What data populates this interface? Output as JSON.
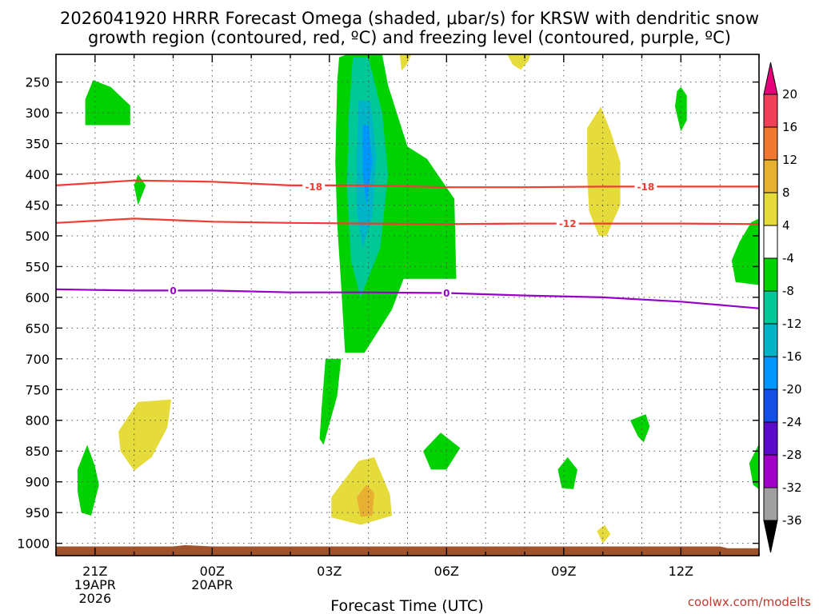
{
  "title_line1": "2026041920 HRRR Forecast Omega (shaded, μbar/s) for KRSW with dendritic snow",
  "title_line2": "growth region (contoured, red, ºC) and freezing level (contoured, purple, ºC)",
  "credit": "coolwx.com/modelts",
  "chart_data": {
    "type": "time-height cross section",
    "xlabel": "Forecast Time (UTC)",
    "x_ticks": [
      {
        "label": "21Z",
        "sub": [
          "19APR",
          "2026"
        ],
        "hour": 1
      },
      {
        "label": "00Z",
        "sub": [
          "20APR"
        ],
        "hour": 4
      },
      {
        "label": "03Z",
        "sub": [],
        "hour": 7
      },
      {
        "label": "06Z",
        "sub": [],
        "hour": 10
      },
      {
        "label": "09Z",
        "sub": [],
        "hour": 13
      },
      {
        "label": "12Z",
        "sub": [],
        "hour": 16
      }
    ],
    "x_range": [
      0,
      18
    ],
    "y_unit": "mb",
    "y_range": [
      1020,
      205
    ],
    "y_ticks": [
      250,
      300,
      350,
      400,
      450,
      500,
      550,
      600,
      650,
      700,
      750,
      800,
      850,
      900,
      950,
      1000
    ],
    "colorbar": {
      "labels": [
        20,
        16,
        12,
        8,
        4,
        -4,
        -8,
        -12,
        -16,
        -20,
        -24,
        -28,
        -32,
        -36
      ],
      "colors": [
        "#f0405a",
        "#f07830",
        "#e8b030",
        "#e5dc3c",
        "#ffffff",
        "#00d200",
        "#00c896",
        "#00b4c8",
        "#0096ff",
        "#1450e6",
        "#5a0ac8",
        "#a000c8",
        "#a0a0a0"
      ],
      "over_color": "#e6007a",
      "under_color": "#000000"
    },
    "contours": [
      {
        "name": "dendritic -18",
        "label": "-18",
        "color": "#f03c32",
        "points": [
          [
            0,
            418
          ],
          [
            2,
            410
          ],
          [
            4,
            412
          ],
          [
            6,
            418
          ],
          [
            8,
            418
          ],
          [
            10,
            421
          ],
          [
            12,
            421
          ],
          [
            14,
            420
          ],
          [
            16,
            420
          ],
          [
            18,
            420
          ]
        ]
      },
      {
        "name": "dendritic -12",
        "label": "-12",
        "color": "#f03c32",
        "points": [
          [
            0,
            479
          ],
          [
            2,
            472
          ],
          [
            4,
            477
          ],
          [
            6,
            479
          ],
          [
            8,
            480
          ],
          [
            10,
            481
          ],
          [
            12,
            480
          ],
          [
            14,
            480
          ],
          [
            16,
            480
          ],
          [
            18,
            481
          ]
        ]
      },
      {
        "name": "freezing level 0",
        "label": "0",
        "color": "#9600c8",
        "points": [
          [
            0,
            587
          ],
          [
            2,
            589
          ],
          [
            4,
            589
          ],
          [
            6,
            592
          ],
          [
            8,
            592
          ],
          [
            10,
            593
          ],
          [
            12,
            597
          ],
          [
            14,
            600
          ],
          [
            16,
            607
          ],
          [
            18,
            618
          ]
        ]
      }
    ],
    "contour_labels": [
      {
        "text": "-18",
        "hour": 6.6,
        "level": 420,
        "color": "#f03c32"
      },
      {
        "text": "-18",
        "hour": 15.1,
        "level": 420,
        "color": "#f03c32"
      },
      {
        "text": "-12",
        "hour": 13.1,
        "level": 480,
        "color": "#f03c32"
      },
      {
        "text": "0",
        "hour": 3.0,
        "level": 589,
        "color": "#9600c8"
      },
      {
        "text": "0",
        "hour": 10.0,
        "level": 593,
        "color": "#9600c8"
      }
    ],
    "shaded_regions": [
      {
        "name": "omega -4 to -8",
        "color": "#00d200",
        "points": [
          [
            0.75,
            320
          ],
          [
            1.9,
            320
          ],
          [
            1.9,
            288
          ],
          [
            1.4,
            258
          ],
          [
            0.95,
            247
          ],
          [
            0.75,
            278
          ]
        ]
      },
      {
        "name": "omega -4 to -8",
        "color": "#00d200",
        "points": [
          [
            2.0,
            418
          ],
          [
            2.1,
            400
          ],
          [
            2.3,
            418
          ],
          [
            2.1,
            450
          ]
        ]
      },
      {
        "name": "omega -4 to -8",
        "color": "#00d200",
        "points": [
          [
            7.25,
            210
          ],
          [
            7.45,
            205
          ],
          [
            8.35,
            205
          ],
          [
            8.5,
            255
          ],
          [
            9.0,
            355
          ],
          [
            9.5,
            375
          ],
          [
            10.2,
            440
          ],
          [
            10.25,
            570
          ],
          [
            8.9,
            570
          ],
          [
            8.6,
            620
          ],
          [
            7.9,
            690
          ],
          [
            7.4,
            690
          ],
          [
            7.3,
            580
          ],
          [
            7.2,
            480
          ],
          [
            7.15,
            380
          ],
          [
            7.2,
            250
          ]
        ]
      },
      {
        "name": "omega -8 to -12",
        "color": "#00c896",
        "points": [
          [
            7.6,
            210
          ],
          [
            8.0,
            210
          ],
          [
            8.35,
            300
          ],
          [
            8.5,
            400
          ],
          [
            8.3,
            520
          ],
          [
            7.8,
            600
          ],
          [
            7.55,
            540
          ],
          [
            7.45,
            420
          ],
          [
            7.5,
            300
          ]
        ]
      },
      {
        "name": "omega -12 to -16",
        "color": "#00b4c8",
        "points": [
          [
            7.75,
            280
          ],
          [
            8.05,
            280
          ],
          [
            8.2,
            370
          ],
          [
            8.1,
            470
          ],
          [
            7.85,
            520
          ],
          [
            7.7,
            460
          ],
          [
            7.7,
            370
          ]
        ]
      },
      {
        "name": "omega -16 to -20",
        "color": "#0096ff",
        "points": [
          [
            7.85,
            320
          ],
          [
            8.0,
            320
          ],
          [
            8.1,
            380
          ],
          [
            7.95,
            450
          ],
          [
            7.85,
            400
          ]
        ]
      },
      {
        "name": "omega -4 to -8",
        "color": "#00d200",
        "points": [
          [
            17.5,
            510
          ],
          [
            17.8,
            478
          ],
          [
            18,
            472
          ],
          [
            18,
            580
          ],
          [
            17.4,
            575
          ],
          [
            17.3,
            540
          ]
        ]
      },
      {
        "name": "omega -4 to -8",
        "color": "#00d200",
        "points": [
          [
            16.0,
            258
          ],
          [
            16.15,
            272
          ],
          [
            16.15,
            312
          ],
          [
            16.0,
            330
          ],
          [
            15.85,
            290
          ],
          [
            15.9,
            265
          ]
        ]
      },
      {
        "name": "omega -4 to -8",
        "color": "#00d200",
        "points": [
          [
            6.9,
            700
          ],
          [
            7.3,
            700
          ],
          [
            7.2,
            760
          ],
          [
            6.85,
            840
          ],
          [
            6.75,
            830
          ],
          [
            6.8,
            780
          ]
        ]
      },
      {
        "name": "omega -4 to -8",
        "color": "#00d200",
        "points": [
          [
            0.55,
            880
          ],
          [
            0.8,
            840
          ],
          [
            1.0,
            875
          ],
          [
            1.1,
            905
          ],
          [
            0.9,
            955
          ],
          [
            0.65,
            950
          ],
          [
            0.55,
            915
          ]
        ]
      },
      {
        "name": "omega -4 to -8",
        "color": "#00d200",
        "points": [
          [
            9.4,
            850
          ],
          [
            9.85,
            820
          ],
          [
            10.35,
            845
          ],
          [
            10.0,
            880
          ],
          [
            9.6,
            880
          ]
        ]
      },
      {
        "name": "omega -4 to -8",
        "color": "#00d200",
        "points": [
          [
            12.85,
            880
          ],
          [
            13.1,
            860
          ],
          [
            13.35,
            880
          ],
          [
            13.25,
            912
          ],
          [
            12.95,
            910
          ]
        ]
      },
      {
        "name": "omega -4 to -8",
        "color": "#00d200",
        "points": [
          [
            14.7,
            800
          ],
          [
            15.1,
            790
          ],
          [
            15.2,
            810
          ],
          [
            15.05,
            836
          ],
          [
            14.9,
            826
          ]
        ]
      },
      {
        "name": "omega -4 to -8",
        "color": "#00d200",
        "points": [
          [
            17.75,
            870
          ],
          [
            18,
            838
          ],
          [
            18,
            912
          ],
          [
            17.85,
            905
          ]
        ]
      },
      {
        "name": "omega 4 to 8",
        "color": "#e5dc3c",
        "points": [
          [
            1.6,
            818
          ],
          [
            2.1,
            770
          ],
          [
            2.95,
            766
          ],
          [
            2.85,
            812
          ],
          [
            2.45,
            860
          ],
          [
            2.0,
            882
          ],
          [
            1.65,
            850
          ]
        ]
      },
      {
        "name": "omega 4 to 8",
        "color": "#e5dc3c",
        "points": [
          [
            7.05,
            925
          ],
          [
            7.75,
            866
          ],
          [
            8.15,
            860
          ],
          [
            8.55,
            920
          ],
          [
            8.6,
            955
          ],
          [
            7.8,
            970
          ],
          [
            7.05,
            958
          ]
        ]
      },
      {
        "name": "omega 8 to 12",
        "color": "#e8b030",
        "points": [
          [
            7.7,
            925
          ],
          [
            7.95,
            905
          ],
          [
            8.15,
            918
          ],
          [
            8.1,
            955
          ],
          [
            7.8,
            957
          ]
        ]
      },
      {
        "name": "omega 4 to 8",
        "color": "#e5dc3c",
        "points": [
          [
            13.6,
            325
          ],
          [
            13.95,
            290
          ],
          [
            14.2,
            330
          ],
          [
            14.45,
            380
          ],
          [
            14.45,
            450
          ],
          [
            14.1,
            500
          ],
          [
            13.9,
            500
          ],
          [
            13.65,
            460
          ],
          [
            13.6,
            400
          ]
        ]
      },
      {
        "name": "omega 4 to 8",
        "color": "#e5dc3c",
        "points": [
          [
            8.8,
            205
          ],
          [
            9.1,
            205
          ],
          [
            9.0,
            220
          ],
          [
            8.85,
            232
          ]
        ]
      },
      {
        "name": "omega 4 to 8",
        "color": "#e5dc3c",
        "points": [
          [
            11.55,
            205
          ],
          [
            12.15,
            205
          ],
          [
            12.1,
            215
          ],
          [
            11.9,
            230
          ],
          [
            11.7,
            222
          ]
        ]
      },
      {
        "name": "omega 4 to 8",
        "color": "#e5dc3c",
        "points": [
          [
            13.85,
            980
          ],
          [
            14.05,
            970
          ],
          [
            14.2,
            985
          ],
          [
            14.0,
            1000
          ]
        ]
      }
    ],
    "terrain": {
      "name": "surface",
      "color": "#a0522d",
      "points": [
        [
          0,
          1005
        ],
        [
          3,
          1005
        ],
        [
          3.3,
          1003
        ],
        [
          4,
          1005
        ],
        [
          17,
          1005
        ],
        [
          17.2,
          1008
        ],
        [
          18,
          1008
        ],
        [
          18,
          1020
        ],
        [
          0,
          1020
        ]
      ]
    }
  }
}
